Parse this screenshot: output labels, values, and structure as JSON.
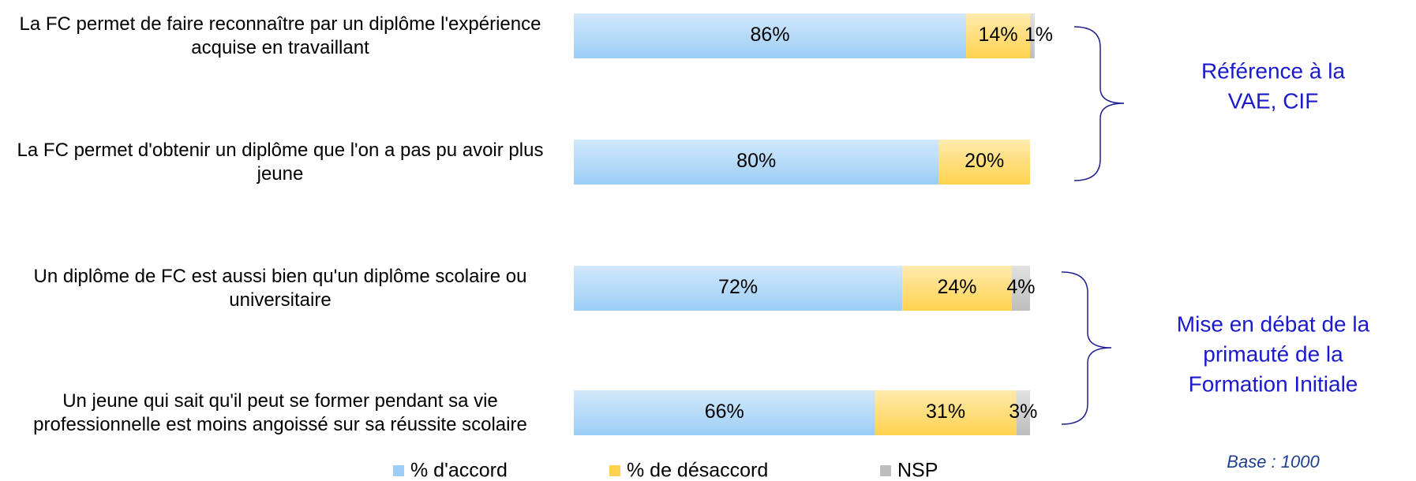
{
  "chart_data": {
    "type": "stacked-bar-horizontal",
    "categories": [
      "La FC permet de faire reconnaître par un diplôme l'expérience acquise en travaillant",
      "La FC permet d'obtenir un diplôme que l'on a pas pu avoir plus jeune",
      "Un diplôme de FC est aussi bien qu'un diplôme scolaire ou universitaire",
      "Un jeune qui sait qu'il peut se former pendant sa vie professionnelle est moins angoissé sur sa réussite scolaire"
    ],
    "series": [
      {
        "name": "% d'accord",
        "color": "#9ccdf6",
        "values": [
          86,
          80,
          72,
          66
        ],
        "value_labels": [
          "86%",
          "80%",
          "72%",
          "66%"
        ]
      },
      {
        "name": "% de désaccord",
        "color": "#ffd24d",
        "values": [
          14,
          20,
          24,
          31
        ],
        "value_labels": [
          "14%",
          "20%",
          "24%",
          "31%"
        ]
      },
      {
        "name": "NSP",
        "color": "#bdbdbd",
        "values": [
          1,
          null,
          4,
          3
        ],
        "value_labels": [
          "1%",
          null,
          "4%",
          "3%"
        ]
      }
    ],
    "annotations": [
      {
        "lines": [
          "Référence à la",
          "VAE, CIF"
        ]
      },
      {
        "lines": [
          "Mise en débat de la",
          "primauté de la",
          "Formation Initiale"
        ]
      }
    ],
    "base": "Base : 1000",
    "legend": "bottom"
  }
}
